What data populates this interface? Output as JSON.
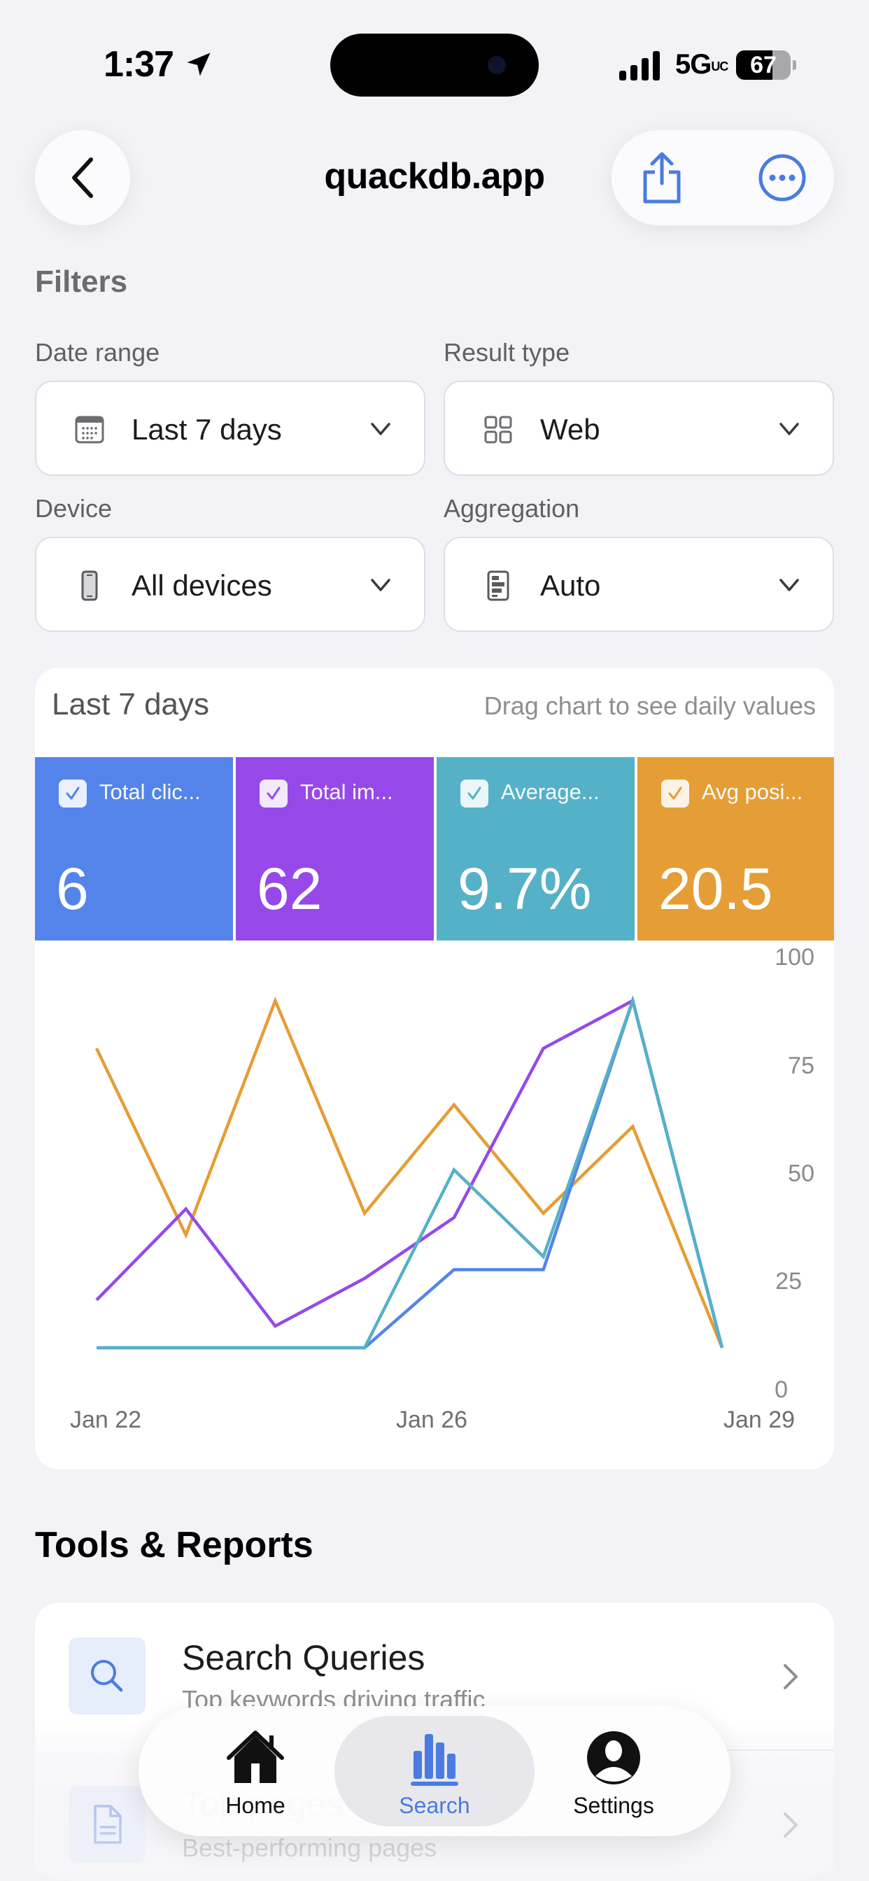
{
  "status_bar": {
    "time": "1:37",
    "network": "5G",
    "network_suffix": "UC",
    "battery": "67"
  },
  "nav": {
    "title": "quackdb.app",
    "back_icon": "chevron-left-icon",
    "share_icon": "share-icon",
    "more_icon": "ellipsis-circle-icon"
  },
  "filters": {
    "section_label": "Filters",
    "date_range": {
      "label": "Date range",
      "value": "Last 7 days",
      "icon": "calendar-icon"
    },
    "result_type": {
      "label": "Result type",
      "value": "Web",
      "icon": "grid-icon"
    },
    "device": {
      "label": "Device",
      "value": "All devices",
      "icon": "phone-icon"
    },
    "aggregation": {
      "label": "Aggregation",
      "value": "Auto",
      "icon": "list-document-icon"
    }
  },
  "chart_card": {
    "title": "Last 7 days",
    "hint": "Drag chart to see daily values",
    "metrics": [
      {
        "label": "Total clic...",
        "value": "6",
        "color": "#5484ea",
        "checked": true
      },
      {
        "label": "Total im...",
        "value": "62",
        "color": "#9649e8",
        "checked": true
      },
      {
        "label": "Average...",
        "value": "9.7%",
        "color": "#55b1c7",
        "checked": true
      },
      {
        "label": "Avg posi...",
        "value": "20.5",
        "color": "#e59d36",
        "checked": true
      }
    ],
    "y_ticks": [
      "100",
      "75",
      "50",
      "25",
      "0"
    ],
    "x_ticks": [
      "Jan 22",
      "Jan 26",
      "Jan 29"
    ]
  },
  "chart_data": {
    "type": "line",
    "title": "Last 7 days",
    "x": [
      "Jan 22",
      "Jan 23",
      "Jan 24",
      "Jan 25",
      "Jan 26",
      "Jan 27",
      "Jan 28",
      "Jan 29"
    ],
    "x_tick_labels": [
      "Jan 22",
      "Jan 26",
      "Jan 29"
    ],
    "ylim": [
      0,
      100
    ],
    "y_ticks": [
      0,
      25,
      50,
      75,
      100
    ],
    "y_axis_position": "right",
    "grid": false,
    "series": [
      {
        "name": "Total clicks",
        "color": "#5484ea",
        "values": [
          10,
          10,
          10,
          10,
          28,
          28,
          90,
          10
        ]
      },
      {
        "name": "Total impressions",
        "color": "#9649e8",
        "values": [
          21,
          42,
          15,
          26,
          40,
          79,
          90,
          10
        ]
      },
      {
        "name": "Average CTR",
        "color": "#55b1c7",
        "values": [
          10,
          10,
          10,
          10,
          51,
          31,
          90,
          10
        ]
      },
      {
        "name": "Avg position",
        "color": "#e59d36",
        "values": [
          79,
          36,
          90,
          41,
          66,
          41,
          61,
          10
        ]
      }
    ]
  },
  "tools": {
    "title": "Tools & Reports",
    "items": [
      {
        "title": "Search Queries",
        "subtitle": "Top keywords driving traffic",
        "icon": "search-icon"
      },
      {
        "title": "Top pages",
        "subtitle": "Best-performing pages",
        "icon": "document-icon"
      }
    ]
  },
  "tabbar": {
    "tabs": [
      {
        "label": "Home",
        "icon": "house-icon",
        "active": false
      },
      {
        "label": "Search",
        "icon": "bar-chart-icon",
        "active": true
      },
      {
        "label": "Settings",
        "icon": "person-circle-icon",
        "active": false
      }
    ],
    "accent": "#4a7be0"
  }
}
